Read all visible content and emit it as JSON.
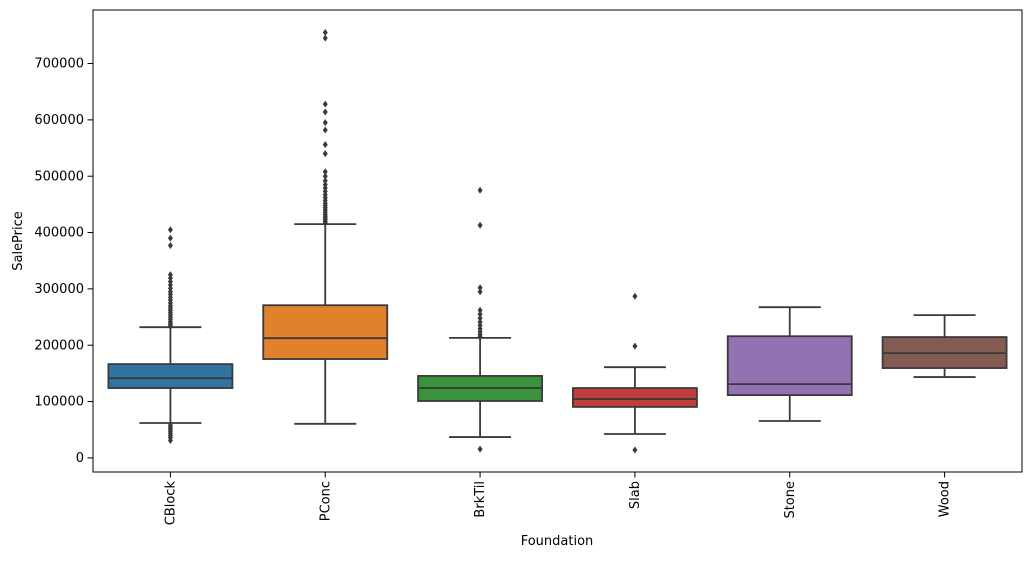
{
  "chart_data": {
    "type": "box",
    "title": "",
    "xlabel": "Foundation",
    "ylabel": "SalePrice",
    "categories": [
      "CBlock",
      "PConc",
      "BrkTil",
      "Slab",
      "Stone",
      "Wood"
    ],
    "palette": [
      "#3274A1",
      "#E1812C",
      "#3A923A",
      "#C03D3E",
      "#9372B2",
      "#845B53"
    ],
    "line_color": "#3A3A3A",
    "flier_color": "#3A3A3A",
    "y_ticks": [
      0,
      100000,
      200000,
      300000,
      400000,
      500000,
      600000,
      700000
    ],
    "ylim": [
      -25000,
      795000
    ],
    "grid": false,
    "legend": "none",
    "boxes": [
      {
        "category": "CBlock",
        "whisker_low": 62000,
        "q1": 124000,
        "median": 141500,
        "q3": 166500,
        "whisker_high": 232000,
        "fliers_high": [
          233000,
          236000,
          239000,
          242000,
          246000,
          250000,
          254000,
          258000,
          262000,
          266000,
          270000,
          275000,
          280000,
          285000,
          290000,
          295000,
          301000,
          307000,
          313000,
          319000,
          325000,
          377000,
          390000,
          405000
        ],
        "fliers_low": [
          58000,
          54500,
          51000,
          47500,
          44000,
          40000,
          36000,
          31000
        ]
      },
      {
        "category": "PConc",
        "whisker_low": 60500,
        "q1": 175500,
        "median": 212500,
        "q3": 271000,
        "whisker_high": 415000,
        "fliers_high": [
          417000,
          420000,
          423000,
          426000,
          429000,
          432000,
          436000,
          440000,
          444000,
          448000,
          452000,
          457000,
          462000,
          467000,
          473000,
          479000,
          485000,
          492000,
          500000,
          508000,
          540000,
          556000,
          582000,
          595000,
          614000,
          628000,
          745000,
          755000
        ],
        "fliers_low": []
      },
      {
        "category": "BrkTil",
        "whisker_low": 37000,
        "q1": 101000,
        "median": 124000,
        "q3": 145500,
        "whisker_high": 213000,
        "fliers_high": [
          215000,
          219000,
          224000,
          229000,
          235000,
          241000,
          248000,
          255000,
          262000,
          295000,
          302000,
          413000,
          475000
        ],
        "fliers_low": [
          15500
        ]
      },
      {
        "category": "Slab",
        "whisker_low": 42500,
        "q1": 90500,
        "median": 104500,
        "q3": 124000,
        "whisker_high": 161000,
        "fliers_high": [
          198500,
          287000
        ],
        "fliers_low": [
          14000
        ]
      },
      {
        "category": "Stone",
        "whisker_low": 65500,
        "q1": 111500,
        "median": 131000,
        "q3": 216000,
        "whisker_high": 267500,
        "fliers_high": [],
        "fliers_low": []
      },
      {
        "category": "Wood",
        "whisker_low": 143500,
        "q1": 159500,
        "median": 186000,
        "q3": 214500,
        "whisker_high": 253500,
        "fliers_high": [],
        "fliers_low": []
      }
    ]
  }
}
